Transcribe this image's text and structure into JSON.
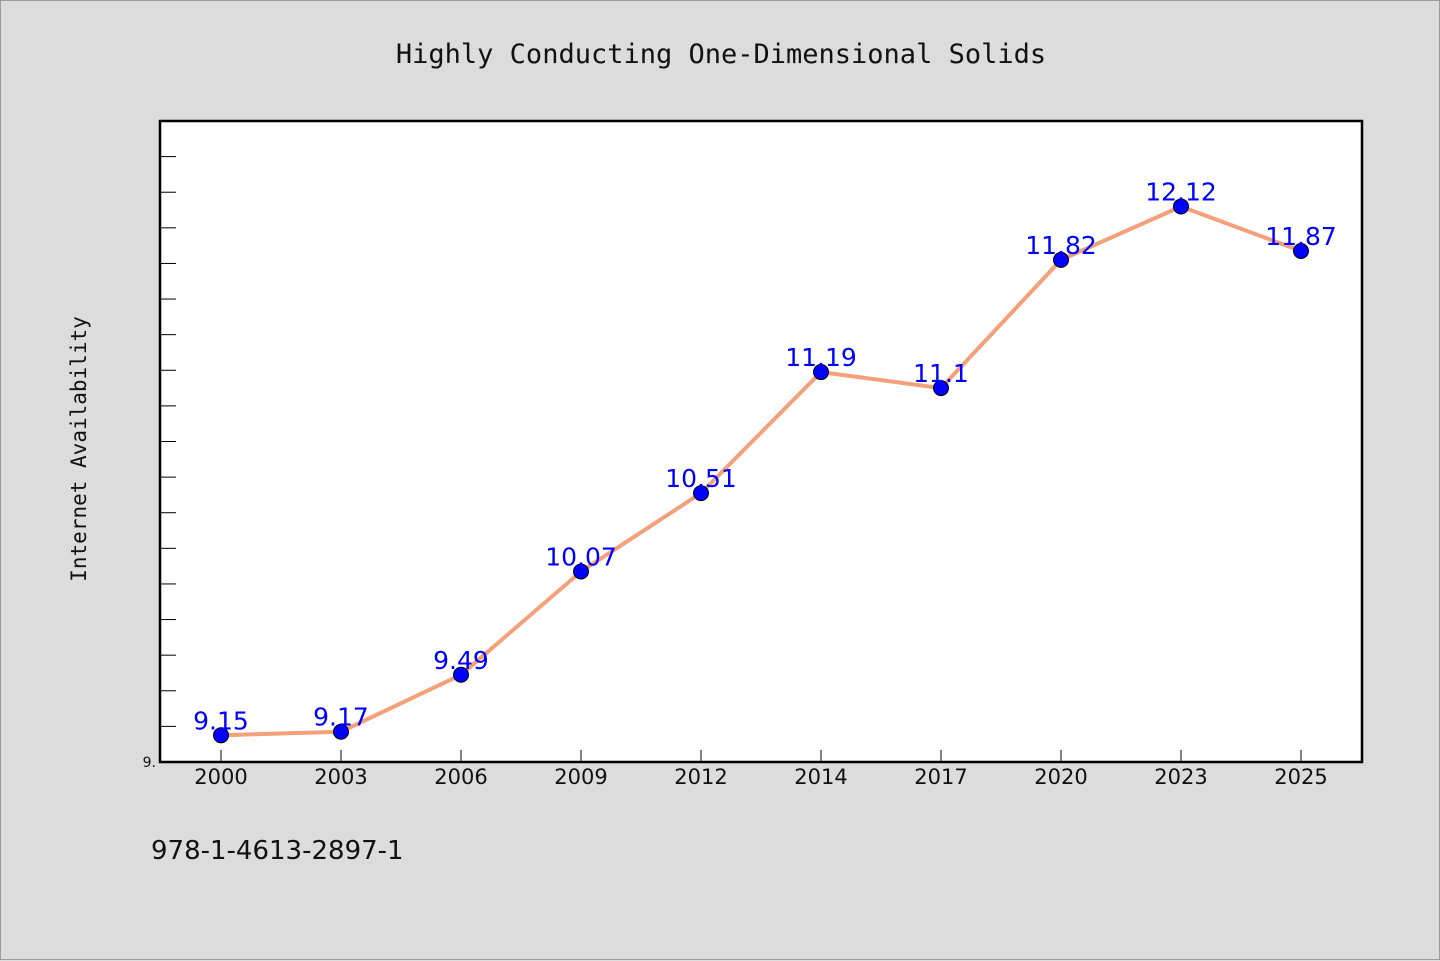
{
  "footer_text": "978-1-4613-2897-1",
  "chart_data": {
    "type": "line",
    "title": "Highly Conducting One-Dimensional Solids",
    "xlabel": "",
    "ylabel": "Internet Availability",
    "categories": [
      "2000",
      "2003",
      "2006",
      "2009",
      "2012",
      "2014",
      "2017",
      "2020",
      "2023",
      "2025"
    ],
    "values": [
      9.15,
      9.17,
      9.49,
      10.07,
      10.51,
      11.19,
      11.1,
      11.82,
      12.12,
      11.87
    ],
    "data_labels": [
      "9.15",
      "9.17",
      "9.49",
      "10.07",
      "10.51",
      "11.19",
      "11.1",
      "11.82",
      "12.12",
      "11.87"
    ],
    "y_tick_labels": [
      "9."
    ],
    "ylim": [
      9.0,
      12.6
    ],
    "grid": false,
    "line_color": "#f4a07a",
    "marker_color": "#0000ff",
    "label_color": "#0000ff",
    "plot_background": "#ffffff",
    "figure_background": "#dcdcdc"
  }
}
